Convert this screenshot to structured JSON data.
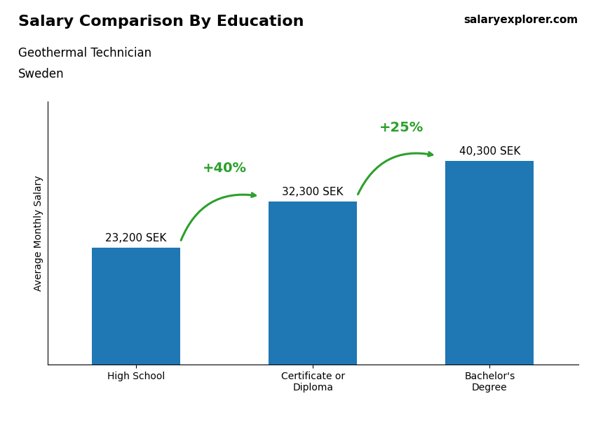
{
  "chart_data": {
    "type": "bar",
    "title": "Salary Comparison By Education",
    "subtitle": [
      "Geothermal Technician",
      "Sweden"
    ],
    "source": "salaryexplorer.com",
    "ylabel": "Average Monthly Salary",
    "categories": [
      "High School",
      "Certificate or\nDiploma",
      "Bachelor's\nDegree"
    ],
    "values": [
      23200,
      32300,
      40300
    ],
    "value_labels": [
      "23,200 SEK",
      "32,300 SEK",
      "40,300 SEK"
    ],
    "data_labels": true,
    "annotations": [
      "+40%",
      "+25%"
    ],
    "ylim": [
      0,
      52000
    ],
    "yticks": [],
    "tick_labels": "x",
    "grid": false
  }
}
